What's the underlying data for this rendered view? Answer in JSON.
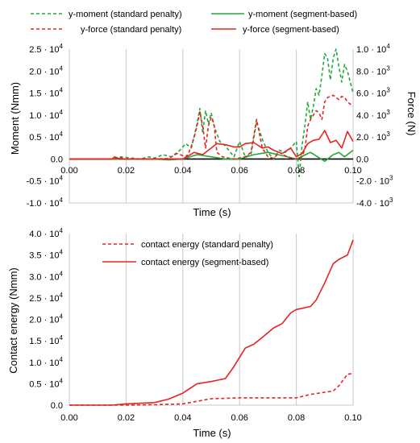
{
  "colors": {
    "red": "#e8231f",
    "green": "#1ea83c",
    "grid": "#c8c8c8"
  },
  "chart_data": [
    {
      "type": "line",
      "xlabel": "Time (s)",
      "ylabel": "Moment (Nmm)",
      "y2label": "Force (N)",
      "xlim": [
        0,
        0.1
      ],
      "ylim": [
        -10000,
        25000
      ],
      "y2lim": [
        -4000,
        10000
      ],
      "grid": "vertical",
      "legend_position": "top",
      "x_tick_labels": [
        "0.00",
        "0.02",
        "0.04",
        "0.06",
        "0.08",
        "0.10"
      ],
      "y_tick_labels": [
        {
          "mantissa": "2.5 · 10",
          "exp": "4"
        },
        {
          "mantissa": "2.0 · 10",
          "exp": "4"
        },
        {
          "mantissa": "1.5 · 10",
          "exp": "4"
        },
        {
          "mantissa": "1.0 · 10",
          "exp": "4"
        },
        {
          "mantissa": "0.5 · 10",
          "exp": "4"
        },
        {
          "mantissa": "0.0",
          "exp": ""
        },
        {
          "mantissa": "-0.5 · 10",
          "exp": "4"
        },
        {
          "mantissa": "-1.0 · 10",
          "exp": "4"
        }
      ],
      "y2_tick_labels": [
        {
          "mantissa": "1.0 · 10",
          "exp": "4"
        },
        {
          "mantissa": "8.0 · 10",
          "exp": "3"
        },
        {
          "mantissa": "6.0 · 10",
          "exp": "3"
        },
        {
          "mantissa": "4.0 · 10",
          "exp": "3"
        },
        {
          "mantissa": "2.0 · 10",
          "exp": "3"
        },
        {
          "mantissa": "0.0",
          "exp": ""
        },
        {
          "mantissa": "-2.0 · 10",
          "exp": "3"
        },
        {
          "mantissa": "-4.0 · 10",
          "exp": "3"
        }
      ],
      "series": [
        {
          "name": "y-moment (standard penalty)",
          "color": "green",
          "dash": true,
          "axis": "left",
          "x": [
            0,
            0.015,
            0.018,
            0.025,
            0.028,
            0.03,
            0.033,
            0.036,
            0.039,
            0.041,
            0.043,
            0.045,
            0.046,
            0.047,
            0.048,
            0.049,
            0.05,
            0.051,
            0.053,
            0.055,
            0.058,
            0.06,
            0.062,
            0.064,
            0.066,
            0.068,
            0.07,
            0.072,
            0.074,
            0.076,
            0.078,
            0.08,
            0.081,
            0.082,
            0.083,
            0.084,
            0.085,
            0.086,
            0.087,
            0.088,
            0.089,
            0.09,
            0.091,
            0.092,
            0.093,
            0.094,
            0.095,
            0.096,
            0.097,
            0.098,
            0.1
          ],
          "y": [
            0,
            0,
            500,
            0,
            500,
            200,
            1000,
            500,
            2000,
            3500,
            2500,
            8000,
            11500,
            6000,
            11000,
            8000,
            10500,
            7500,
            4000,
            3000,
            500,
            4000,
            500,
            1000,
            8500,
            4500,
            1500,
            0,
            2000,
            1500,
            2500,
            4000,
            -4000,
            3000,
            7500,
            13000,
            9000,
            12000,
            16000,
            14500,
            19000,
            24000,
            23000,
            18000,
            23000,
            25000,
            21000,
            17500,
            21500,
            20000,
            15000
          ]
        },
        {
          "name": "y-moment (segment-based)",
          "color": "green",
          "dash": false,
          "axis": "left",
          "x": [
            0,
            0.015,
            0.02,
            0.025,
            0.03,
            0.035,
            0.04,
            0.045,
            0.05,
            0.055,
            0.06,
            0.065,
            0.07,
            0.075,
            0.08,
            0.085,
            0.09,
            0.093,
            0.095,
            0.097,
            0.1
          ],
          "y": [
            0,
            0,
            0,
            0,
            0,
            -200,
            0,
            1000,
            500,
            0,
            0,
            1000,
            1500,
            800,
            0,
            1500,
            -500,
            1000,
            1500,
            500,
            2000
          ]
        },
        {
          "name": "y-force (standard penalty)",
          "color": "red",
          "dash": true,
          "axis": "right",
          "x": [
            0,
            0.016,
            0.017,
            0.02,
            0.03,
            0.035,
            0.038,
            0.04,
            0.041,
            0.042,
            0.043,
            0.044,
            0.045,
            0.046,
            0.047,
            0.048,
            0.049,
            0.05,
            0.051,
            0.052,
            0.054,
            0.056,
            0.058,
            0.06,
            0.062,
            0.064,
            0.066,
            0.068,
            0.07,
            0.072,
            0.074,
            0.076,
            0.078,
            0.08,
            0.081,
            0.082,
            0.083,
            0.084,
            0.085,
            0.086,
            0.087,
            0.088,
            0.089,
            0.09,
            0.091,
            0.092,
            0.093,
            0.094,
            0.095,
            0.096,
            0.097,
            0.098,
            0.1
          ],
          "y": [
            0,
            0,
            150,
            0,
            0,
            50,
            500,
            300,
            200,
            500,
            1200,
            2000,
            3000,
            4300,
            3000,
            1000,
            3000,
            3800,
            3200,
            600,
            200,
            100,
            0,
            100,
            200,
            600,
            3600,
            1000,
            200,
            50,
            600,
            300,
            100,
            0,
            0,
            200,
            900,
            3000,
            3600,
            4000,
            4400,
            4200,
            3600,
            5200,
            5600,
            5700,
            5800,
            5600,
            5400,
            5700,
            5600,
            5200,
            4800
          ]
        },
        {
          "name": "y-force (segment-based)",
          "color": "red",
          "dash": false,
          "axis": "right",
          "x": [
            0,
            0.015,
            0.016,
            0.017,
            0.018,
            0.02,
            0.025,
            0.035,
            0.04,
            0.044,
            0.047,
            0.05,
            0.052,
            0.055,
            0.058,
            0.06,
            0.062,
            0.065,
            0.068,
            0.07,
            0.072,
            0.075,
            0.078,
            0.08,
            0.082,
            0.084,
            0.086,
            0.088,
            0.09,
            0.092,
            0.094,
            0.096,
            0.098,
            0.1
          ],
          "y": [
            0,
            0,
            200,
            100,
            0,
            0,
            0,
            0,
            0,
            600,
            400,
            1000,
            1400,
            1300,
            1100,
            1100,
            1400,
            1500,
            1000,
            1100,
            800,
            500,
            1000,
            200,
            500,
            1400,
            1700,
            1800,
            2600,
            1500,
            1700,
            1000,
            2500,
            1600
          ]
        }
      ]
    },
    {
      "type": "line",
      "xlabel": "Time (s)",
      "ylabel": "Contact energy (Nmm)",
      "xlim": [
        0,
        0.1
      ],
      "ylim": [
        0,
        40000
      ],
      "grid": "vertical",
      "legend_position": "top-left",
      "x_tick_labels": [
        "0.00",
        "0.02",
        "0.04",
        "0.06",
        "0.08",
        "0.10"
      ],
      "y_tick_labels": [
        {
          "mantissa": "4.0 · 10",
          "exp": "4"
        },
        {
          "mantissa": "3.5 · 10",
          "exp": "4"
        },
        {
          "mantissa": "3.0 · 10",
          "exp": "4"
        },
        {
          "mantissa": "2.5 · 10",
          "exp": "4"
        },
        {
          "mantissa": "2.0 · 10",
          "exp": "4"
        },
        {
          "mantissa": "1.5 · 10",
          "exp": "4"
        },
        {
          "mantissa": "1.0 · 10",
          "exp": "4"
        },
        {
          "mantissa": "0.5 · 10",
          "exp": "4"
        },
        {
          "mantissa": "0.0",
          "exp": ""
        }
      ],
      "series": [
        {
          "name": "contact energy (standard penalty)",
          "color": "red",
          "dash": true,
          "x": [
            0,
            0.02,
            0.03,
            0.04,
            0.045,
            0.05,
            0.055,
            0.06,
            0.07,
            0.08,
            0.085,
            0.09,
            0.093,
            0.095,
            0.098,
            0.1
          ],
          "y": [
            0,
            0,
            100,
            300,
            900,
            1500,
            1600,
            1700,
            1700,
            1700,
            2500,
            3000,
            3300,
            4500,
            7200,
            7400
          ]
        },
        {
          "name": "contact energy (segment-based)",
          "color": "red",
          "dash": false,
          "x": [
            0,
            0.015,
            0.02,
            0.03,
            0.035,
            0.04,
            0.045,
            0.05,
            0.055,
            0.058,
            0.062,
            0.065,
            0.068,
            0.072,
            0.075,
            0.078,
            0.08,
            0.085,
            0.087,
            0.09,
            0.093,
            0.095,
            0.098,
            0.1
          ],
          "y": [
            0,
            0,
            300,
            600,
            1400,
            2800,
            5000,
            5500,
            6200,
            9000,
            13300,
            14200,
            15800,
            18000,
            19000,
            21500,
            22300,
            23000,
            24500,
            28500,
            33000,
            34000,
            35000,
            38500
          ]
        }
      ]
    }
  ]
}
